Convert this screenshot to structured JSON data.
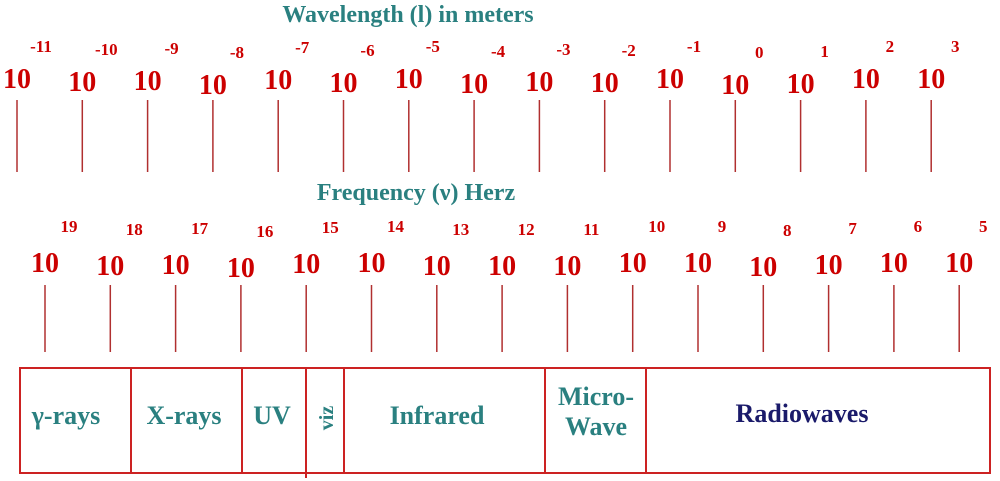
{
  "wavelength": {
    "title": "Wavelength (l) in meters",
    "ticks": [
      {
        "base": "10",
        "exponent": "-11"
      },
      {
        "base": "10",
        "exponent": "-10"
      },
      {
        "base": "10",
        "exponent": "-9"
      },
      {
        "base": "10",
        "exponent": "-8"
      },
      {
        "base": "10",
        "exponent": "-7"
      },
      {
        "base": "10",
        "exponent": "-6"
      },
      {
        "base": "10",
        "exponent": "-5"
      },
      {
        "base": "10",
        "exponent": "-4"
      },
      {
        "base": "10",
        "exponent": "-3"
      },
      {
        "base": "10",
        "exponent": "-2"
      },
      {
        "base": "10",
        "exponent": "-1"
      },
      {
        "base": "10",
        "exponent": "0"
      },
      {
        "base": "10",
        "exponent": "1"
      },
      {
        "base": "10",
        "exponent": "2"
      },
      {
        "base": "10",
        "exponent": "3"
      }
    ]
  },
  "frequency": {
    "title": "Frequency (ν) Herz",
    "ticks": [
      {
        "base": "10",
        "exponent": "19"
      },
      {
        "base": "10",
        "exponent": "18"
      },
      {
        "base": "10",
        "exponent": "17"
      },
      {
        "base": "10",
        "exponent": "16"
      },
      {
        "base": "10",
        "exponent": "15"
      },
      {
        "base": "10",
        "exponent": "14"
      },
      {
        "base": "10",
        "exponent": "13"
      },
      {
        "base": "10",
        "exponent": "12"
      },
      {
        "base": "10",
        "exponent": "11"
      },
      {
        "base": "10",
        "exponent": "10"
      },
      {
        "base": "10",
        "exponent": "9"
      },
      {
        "base": "10",
        "exponent": "8"
      },
      {
        "base": "10",
        "exponent": "7"
      },
      {
        "base": "10",
        "exponent": "6"
      },
      {
        "base": "10",
        "exponent": "5"
      }
    ]
  },
  "bands": [
    {
      "lines": [
        "γ-rays"
      ]
    },
    {
      "lines": [
        "X-rays"
      ]
    },
    {
      "lines": [
        "UV"
      ]
    },
    {
      "lines": [
        "viz"
      ]
    },
    {
      "lines": [
        "Infrared"
      ]
    },
    {
      "lines": [
        "Micro-",
        "Wave"
      ]
    },
    {
      "lines": [
        "Radiowaves"
      ]
    }
  ]
}
